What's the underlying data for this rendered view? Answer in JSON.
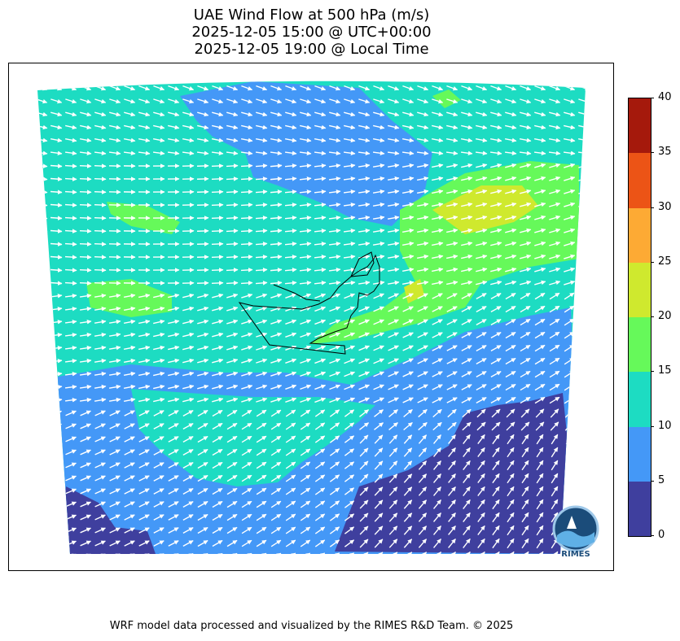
{
  "title": {
    "line1": "UAE Wind Flow at 500 hPa (m/s)",
    "line2": "2025-12-05 15:00 @ UTC+00:00",
    "line3": "2025-12-05 19:00 @ Local Time"
  },
  "colorbar": {
    "ticks": [
      "0",
      "5",
      "10",
      "15",
      "20",
      "25",
      "30",
      "35",
      "40"
    ],
    "colors": [
      "#3f3f9e",
      "#4498f7",
      "#1ddcc2",
      "#66f95a",
      "#cfe92e",
      "#fdaa34",
      "#ec5416",
      "#a5190c"
    ]
  },
  "wind_field": {
    "dominant_flow": "westerly to west-northwesterly",
    "arrow_color": "#ffffff"
  },
  "logo": {
    "text": "RIMES"
  },
  "footer": "WRF model data processed and visualized by the RIMES R&D Team. © 2025"
}
